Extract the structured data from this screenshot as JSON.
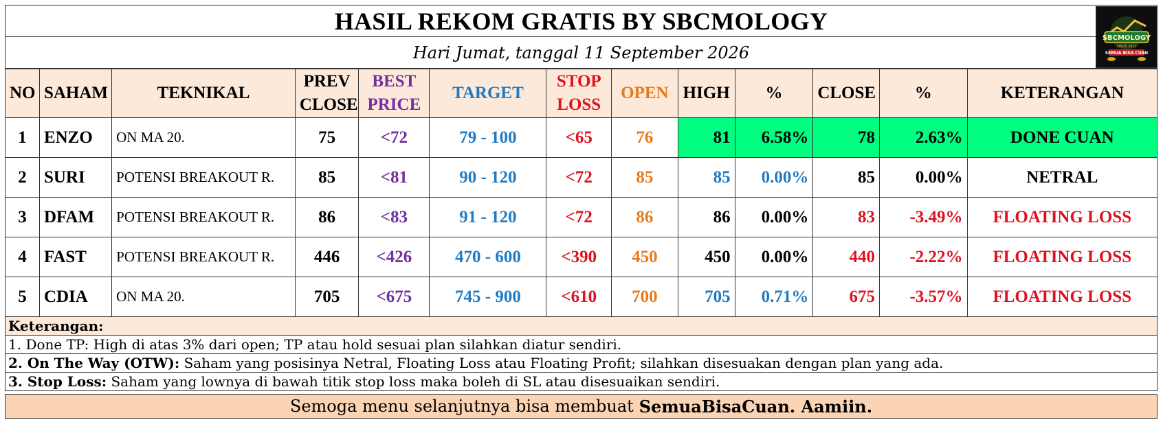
{
  "title": "HASIL REKOM GRATIS BY SBCMOLOGY",
  "date": "Hari Jumat, tanggal 11 September 2026",
  "logo": {
    "line1": "SBCMOLOGY",
    "line2": "SEMUA BISA CUAN",
    "line3": "SINCE 2022"
  },
  "headers": {
    "no": "NO",
    "saham": "SAHAM",
    "teknikal": "TEKNIKAL",
    "prev_close_1": "PREV",
    "prev_close_2": "CLOSE",
    "best_price_1": "BEST",
    "best_price_2": "PRICE",
    "target": "TARGET",
    "stop_loss_1": "STOP",
    "stop_loss_2": "LOSS",
    "open": "OPEN",
    "high": "HIGH",
    "pct1": "%",
    "close": "CLOSE",
    "pct2": "%",
    "keterangan": "KETERANGAN"
  },
  "rows": [
    {
      "no": "1",
      "saham": "ENZO",
      "teknikal": "ON MA 20.",
      "prev_close": "75",
      "best_price": "<72",
      "target": "79 - 100",
      "stop_loss": "<65",
      "open": "76",
      "high": "81",
      "pct_high": "6.58%",
      "close": "78",
      "pct_close": "2.63%",
      "keterangan": "DONE CUAN"
    },
    {
      "no": "2",
      "saham": "SURI",
      "teknikal": "POTENSI BREAKOUT R.",
      "prev_close": "85",
      "best_price": "<81",
      "target": "90 - 120",
      "stop_loss": "<72",
      "open": "85",
      "high": "85",
      "pct_high": "0.00%",
      "close": "85",
      "pct_close": "0.00%",
      "keterangan": "NETRAL"
    },
    {
      "no": "3",
      "saham": "DFAM",
      "teknikal": "POTENSI BREAKOUT R.",
      "prev_close": "86",
      "best_price": "<83",
      "target": "91 - 120",
      "stop_loss": "<72",
      "open": "86",
      "high": "86",
      "pct_high": "0.00%",
      "close": "83",
      "pct_close": "-3.49%",
      "keterangan": "FLOATING LOSS"
    },
    {
      "no": "4",
      "saham": "FAST",
      "teknikal": "POTENSI BREAKOUT R.",
      "prev_close": "446",
      "best_price": "<426",
      "target": "470 - 600",
      "stop_loss": "<390",
      "open": "450",
      "high": "450",
      "pct_high": "0.00%",
      "close": "440",
      "pct_close": "-2.22%",
      "keterangan": "FLOATING LOSS"
    },
    {
      "no": "5",
      "saham": "CDIA",
      "teknikal": "ON MA 20.",
      "prev_close": "705",
      "best_price": "<675",
      "target": "745 - 900",
      "stop_loss": "<610",
      "open": "700",
      "high": "705",
      "pct_high": "0.71%",
      "close": "675",
      "pct_close": "-3.57%",
      "keterangan": "FLOATING LOSS"
    }
  ],
  "notes": {
    "heading": "Keterangan:",
    "n1": "1. Done TP: High di atas 3% dari open; TP atau hold sesuai plan silahkan diatur sendiri.",
    "n2_label": "2. On The Way (OTW):",
    "n2_text": "Saham yang posisinya Netral, Floating Loss atau Floating Profit; silahkan disesuakan dengan plan yang ada.",
    "n3_label": "3. Stop Loss:",
    "n3_text": "Saham yang lownya di bawah titik stop loss maka boleh di SL atau disesuaikan sendiri."
  },
  "footer": {
    "text": "Semoga menu selanjutnya bisa membuat",
    "bold": "SemuaBisaCuan. Aamiin."
  },
  "colors": {
    "header_bg": "#fde9d9",
    "footer_bg": "#fbd4b4",
    "done_green": "#00ff80",
    "purple": "#7030a0",
    "blue": "#1f7bc4",
    "red": "#e0111f",
    "orange": "#e87a1c"
  }
}
